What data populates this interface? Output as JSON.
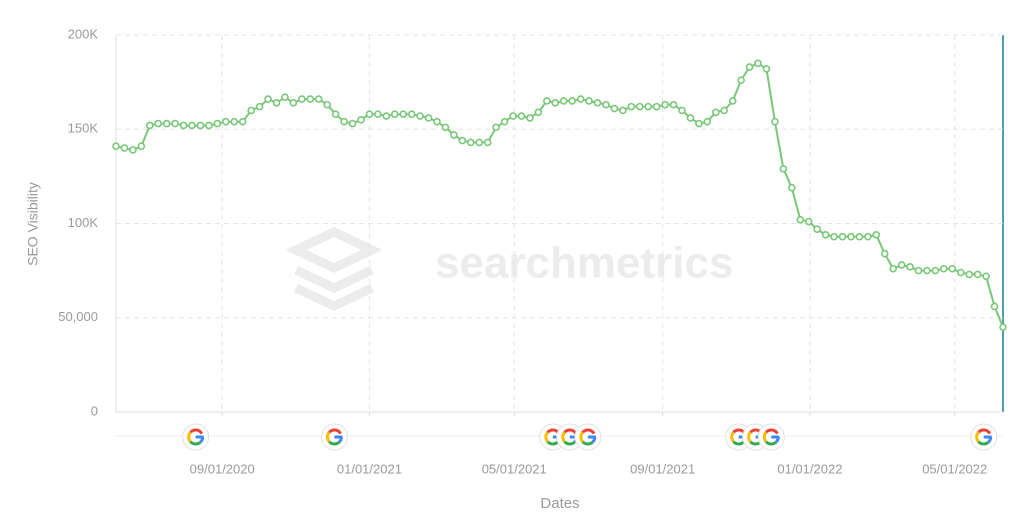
{
  "chart_data": {
    "type": "line",
    "y_label": "SEO Visibility",
    "x_label": "Dates",
    "watermark": "searchmetrics",
    "x": [
      "2020-06-05",
      "2020-06-12",
      "2020-06-19",
      "2020-06-26",
      "2020-07-03",
      "2020-07-10",
      "2020-07-17",
      "2020-07-24",
      "2020-07-31",
      "2020-08-07",
      "2020-08-14",
      "2020-08-21",
      "2020-08-28",
      "2020-09-04",
      "2020-09-11",
      "2020-09-18",
      "2020-09-25",
      "2020-10-02",
      "2020-10-09",
      "2020-10-16",
      "2020-10-23",
      "2020-10-30",
      "2020-11-06",
      "2020-11-13",
      "2020-11-20",
      "2020-11-27",
      "2020-12-04",
      "2020-12-11",
      "2020-12-18",
      "2020-12-25",
      "2021-01-01",
      "2021-01-08",
      "2021-01-15",
      "2021-01-22",
      "2021-01-29",
      "2021-02-05",
      "2021-02-12",
      "2021-02-19",
      "2021-02-26",
      "2021-03-05",
      "2021-03-12",
      "2021-03-19",
      "2021-03-26",
      "2021-04-02",
      "2021-04-09",
      "2021-04-16",
      "2021-04-23",
      "2021-04-30",
      "2021-05-07",
      "2021-05-14",
      "2021-05-21",
      "2021-05-28",
      "2021-06-04",
      "2021-06-11",
      "2021-06-18",
      "2021-06-25",
      "2021-07-02",
      "2021-07-09",
      "2021-07-16",
      "2021-07-23",
      "2021-07-30",
      "2021-08-06",
      "2021-08-13",
      "2021-08-20",
      "2021-08-27",
      "2021-09-03",
      "2021-09-10",
      "2021-09-17",
      "2021-09-24",
      "2021-10-01",
      "2021-10-08",
      "2021-10-15",
      "2021-10-22",
      "2021-10-29",
      "2021-11-05",
      "2021-11-12",
      "2021-11-19",
      "2021-11-26",
      "2021-12-03",
      "2021-12-10",
      "2021-12-17",
      "2021-12-24",
      "2021-12-31",
      "2022-01-07",
      "2022-01-14",
      "2022-01-21",
      "2022-01-28",
      "2022-02-04",
      "2022-02-11",
      "2022-02-18",
      "2022-02-25",
      "2022-03-04",
      "2022-03-11",
      "2022-03-18",
      "2022-03-25",
      "2022-04-01",
      "2022-04-08",
      "2022-04-15",
      "2022-04-22",
      "2022-04-29",
      "2022-05-06",
      "2022-05-13",
      "2022-05-20",
      "2022-05-27",
      "2022-06-03",
      "2022-06-10"
    ],
    "series": [
      {
        "color": "#7ac77a",
        "values": [
          141000,
          140000,
          139000,
          141000,
          152000,
          153000,
          153000,
          153000,
          152000,
          152000,
          152000,
          152000,
          153000,
          154000,
          154000,
          154000,
          160000,
          162000,
          166000,
          164000,
          167000,
          164000,
          166000,
          166000,
          166000,
          163000,
          158000,
          154000,
          153000,
          155000,
          158000,
          158000,
          157000,
          158000,
          158000,
          158000,
          157000,
          156000,
          154000,
          151000,
          147000,
          144000,
          143000,
          143000,
          143000,
          151000,
          154000,
          157000,
          157000,
          156000,
          159000,
          165000,
          164000,
          165000,
          165000,
          166000,
          165000,
          164000,
          163000,
          161000,
          160000,
          162000,
          162000,
          162000,
          162000,
          163000,
          163000,
          160000,
          156000,
          153000,
          154000,
          159000,
          160000,
          165000,
          176000,
          183000,
          185000,
          182000,
          154000,
          129000,
          119000,
          102000,
          101000,
          97000,
          94000,
          93000,
          93000,
          93000,
          93000,
          93000,
          94000,
          84000,
          76000,
          78000,
          77000,
          75000,
          75000,
          75000,
          76000,
          76000,
          74000,
          73000,
          73000,
          72000,
          56000,
          45000
        ]
      }
    ],
    "google_updates": [
      "2020-08-10",
      "2020-12-03",
      "2021-06-02",
      "2021-06-16",
      "2021-07-01",
      "2021-11-03",
      "2021-11-17",
      "2021-11-30",
      "2022-05-25"
    ],
    "xlim": [
      "2020-06-05",
      "2022-06-10"
    ],
    "xticks": [
      {
        "value": "2020-09-01",
        "label": "09/01/2020"
      },
      {
        "value": "2021-01-01",
        "label": "01/01/2021"
      },
      {
        "value": "2021-05-01",
        "label": "05/01/2021"
      },
      {
        "value": "2021-09-01",
        "label": "09/01/2021"
      },
      {
        "value": "2022-01-01",
        "label": "01/01/2022"
      },
      {
        "value": "2022-05-01",
        "label": "05/01/2022"
      }
    ],
    "ylim": [
      0,
      200000
    ],
    "yticks": [
      0,
      {
        "value": 50000,
        "label": "50,000"
      },
      {
        "value": 100000,
        "label": "100K"
      },
      {
        "value": 150000,
        "label": "150K"
      },
      {
        "value": 200000,
        "label": "200K"
      }
    ],
    "grid": true
  }
}
